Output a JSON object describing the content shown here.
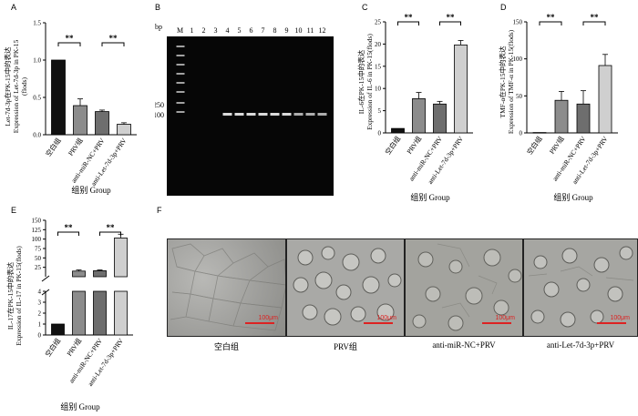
{
  "panels": {
    "A": {
      "letter": "A",
      "ylabel_cn": "Let-7d-3p在PK-15中的表达",
      "ylabel_en": "Expression of Let-7d-3p in PK-15",
      "ylabel_unit": "(flods)",
      "xlabel": "组别 Group"
    },
    "B": {
      "letter": "B",
      "bp_label": "bp",
      "lane_labels": [
        "M",
        "1",
        "2",
        "3",
        "4",
        "5",
        "6",
        "7",
        "8",
        "9",
        "10",
        "11",
        "12"
      ],
      "marker_250": "250",
      "marker_100": "100"
    },
    "C": {
      "letter": "C",
      "ylabel_cn": "IL-6在PK-15中的表达",
      "ylabel_en": "Expression of IL-6 in PK-15(flods)",
      "xlabel": "组别 Group"
    },
    "D": {
      "letter": "D",
      "ylabel_cn": "TMF-α在PK-15中的表达",
      "ylabel_en": "Expression of TMF-α in PK-15(flods)",
      "xlabel": "组别 Group"
    },
    "E": {
      "letter": "E",
      "ylabel_cn": "IL-17在PK-15中的表达",
      "ylabel_en": "Expression of IL-17 in PK-15(flods)",
      "xlabel": "组别 Group"
    },
    "F": {
      "letter": "F",
      "captions": [
        "空白组",
        "PRV组",
        "anti-miR-NC+PRV",
        "anti-Let-7d-3p+PRV"
      ],
      "scale_label": "100μm"
    }
  },
  "significance": "**",
  "colors": {
    "blank": "#111111",
    "prv": "#8c8c8c",
    "nc": "#6e6e6e",
    "anti": "#cfcfcf"
  },
  "chart_data": [
    {
      "panel": "A",
      "type": "bar",
      "categories": [
        "空白组",
        "PRV组",
        "anti-miR-NC+PRV",
        "anti-Let-7d-3p+PRV"
      ],
      "values": [
        1.0,
        0.39,
        0.31,
        0.14
      ],
      "errors": [
        0,
        0.09,
        0.02,
        0.02
      ],
      "ylim": [
        0,
        1.5
      ],
      "yticks": [
        0,
        0.5,
        1.0,
        1.5
      ],
      "ytick_labels": [
        "0.0",
        "0.5",
        "1.0",
        "1.5"
      ],
      "brackets": [
        [
          0,
          1
        ],
        [
          2,
          3
        ]
      ],
      "xlabel": "组别 Group"
    },
    {
      "panel": "C",
      "type": "bar",
      "categories": [
        "空白组",
        "PRV组",
        "anti-miR-NC+PRV",
        "anti-Let-7d-3p+PRV"
      ],
      "values": [
        1.0,
        7.7,
        6.5,
        19.8
      ],
      "errors": [
        0,
        1.4,
        0.6,
        1.0
      ],
      "ylim": [
        0,
        25
      ],
      "yticks": [
        0,
        5,
        10,
        15,
        20,
        25
      ],
      "ytick_labels": [
        "0",
        "5",
        "10",
        "15",
        "20",
        "25"
      ],
      "brackets": [
        [
          0,
          1
        ],
        [
          2,
          3
        ]
      ],
      "xlabel": "组别 Group"
    },
    {
      "panel": "D",
      "type": "bar",
      "categories": [
        "空白组",
        "PRV组",
        "anti-miR-NC+PRV",
        "anti-Let-7d-3p+PRV"
      ],
      "values": [
        0.5,
        44,
        39,
        91
      ],
      "errors": [
        0,
        12,
        18,
        15
      ],
      "ylim": [
        0,
        150
      ],
      "yticks": [
        0,
        50,
        100,
        150
      ],
      "ytick_labels": [
        "0",
        "50",
        "100",
        "150"
      ],
      "brackets": [
        [
          0,
          1
        ],
        [
          2,
          3
        ]
      ],
      "xlabel": "组别 Group"
    },
    {
      "panel": "E",
      "type": "bar",
      "broken_axis": true,
      "categories": [
        "空白组",
        "PRV组",
        "anti-miR-NC+PRV",
        "anti-Let-7d-3p+PRV"
      ],
      "values": [
        1.0,
        15,
        16,
        103
      ],
      "errors": [
        0,
        3,
        2,
        10
      ],
      "ylim": [
        0,
        150
      ],
      "yticks": [
        0,
        1,
        2,
        3,
        4,
        25,
        50,
        75,
        100,
        125,
        150
      ],
      "ytick_labels": [
        "0",
        "1",
        "2",
        "3",
        "4",
        "25",
        "50",
        "75",
        "100",
        "125",
        "150"
      ],
      "brackets": [
        [
          0,
          1
        ],
        [
          2,
          3
        ]
      ],
      "xlabel": "组别 Group"
    }
  ]
}
